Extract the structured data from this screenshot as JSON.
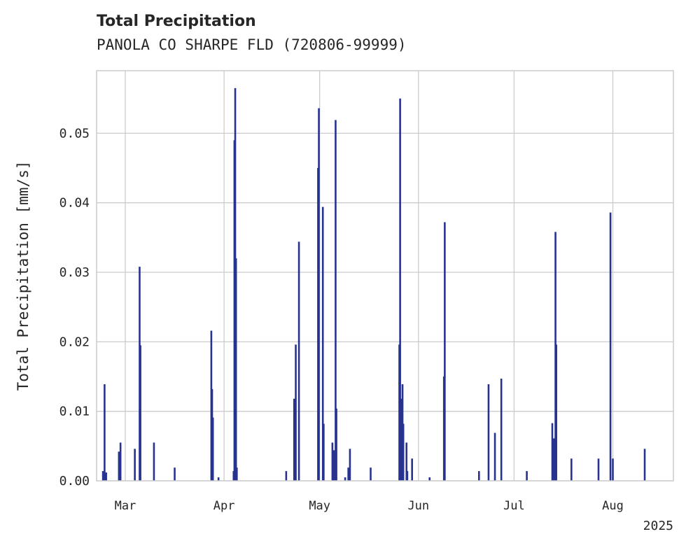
{
  "chart_data": {
    "type": "bar",
    "title": "Total Precipitation",
    "subtitle": "PANOLA CO SHARPE FLD (720806-99999)",
    "ylabel": "Total Precipitation [mm/s]",
    "xlabel": "",
    "year_label": "2025",
    "xlim": [
      "2025-02-20",
      "2025-08-20"
    ],
    "ylim": [
      0,
      0.059
    ],
    "yticks": [
      {
        "value": 0.0,
        "label": "0.00"
      },
      {
        "value": 0.01,
        "label": "0.01"
      },
      {
        "value": 0.02,
        "label": "0.02"
      },
      {
        "value": 0.03,
        "label": "0.03"
      },
      {
        "value": 0.04,
        "label": "0.04"
      },
      {
        "value": 0.05,
        "label": "0.05"
      }
    ],
    "xticks": [
      {
        "date": "2025-03-01",
        "label": "Mar"
      },
      {
        "date": "2025-04-01",
        "label": "Apr"
      },
      {
        "date": "2025-05-01",
        "label": "May"
      },
      {
        "date": "2025-06-01",
        "label": "Jun"
      },
      {
        "date": "2025-07-01",
        "label": "Jul"
      },
      {
        "date": "2025-08-01",
        "label": "Aug"
      }
    ],
    "grid": true,
    "series": [
      {
        "color": "#27338f",
        "points": [
          {
            "date": "2025-02-22",
            "value": 0.0014
          },
          {
            "date": "2025-02-22T12:00",
            "value": 0.0139
          },
          {
            "date": "2025-02-23",
            "value": 0.0012
          },
          {
            "date": "2025-02-27",
            "value": 0.0042
          },
          {
            "date": "2025-02-27T12:00",
            "value": 0.0055
          },
          {
            "date": "2025-03-04",
            "value": 0.0046
          },
          {
            "date": "2025-03-05T12:00",
            "value": 0.0308
          },
          {
            "date": "2025-03-05T18:00",
            "value": 0.0195
          },
          {
            "date": "2025-03-10",
            "value": 0.0055
          },
          {
            "date": "2025-03-16T12:00",
            "value": 0.0019
          },
          {
            "date": "2025-03-28",
            "value": 0.0216
          },
          {
            "date": "2025-03-28T06:00",
            "value": 0.0132
          },
          {
            "date": "2025-03-28T12:00",
            "value": 0.0091
          },
          {
            "date": "2025-03-30T06:00",
            "value": 0.0005
          },
          {
            "date": "2025-04-04",
            "value": 0.0014
          },
          {
            "date": "2025-04-04T06:00",
            "value": 0.049
          },
          {
            "date": "2025-04-04T12:00",
            "value": 0.0565
          },
          {
            "date": "2025-04-04T18:00",
            "value": 0.032
          },
          {
            "date": "2025-04-05",
            "value": 0.0019
          },
          {
            "date": "2025-04-20T12:00",
            "value": 0.0014
          },
          {
            "date": "2025-04-23",
            "value": 0.0118
          },
          {
            "date": "2025-04-23T12:00",
            "value": 0.0196
          },
          {
            "date": "2025-04-24T12:00",
            "value": 0.0344
          },
          {
            "date": "2025-04-30T12:00",
            "value": 0.045
          },
          {
            "date": "2025-04-30T18:00",
            "value": 0.0536
          },
          {
            "date": "2025-05-02",
            "value": 0.0394
          },
          {
            "date": "2025-05-02T06:00",
            "value": 0.0082
          },
          {
            "date": "2025-05-05",
            "value": 0.0055
          },
          {
            "date": "2025-05-05T12:00",
            "value": 0.0044
          },
          {
            "date": "2025-05-06",
            "value": 0.0519
          },
          {
            "date": "2025-05-06T06:00",
            "value": 0.0104
          },
          {
            "date": "2025-05-09",
            "value": 0.0005
          },
          {
            "date": "2025-05-10",
            "value": 0.0019
          },
          {
            "date": "2025-05-10T12:00",
            "value": 0.0046
          },
          {
            "date": "2025-05-17",
            "value": 0.0019
          },
          {
            "date": "2025-05-26",
            "value": 0.0196
          },
          {
            "date": "2025-05-26T06:00",
            "value": 0.055
          },
          {
            "date": "2025-05-26T12:00",
            "value": 0.0118
          },
          {
            "date": "2025-05-27",
            "value": 0.0139
          },
          {
            "date": "2025-05-27T06:00",
            "value": 0.0082
          },
          {
            "date": "2025-05-28T06:00",
            "value": 0.0055
          },
          {
            "date": "2025-05-28T12:00",
            "value": 0.0014
          },
          {
            "date": "2025-05-30",
            "value": 0.0032
          },
          {
            "date": "2025-06-04T12:00",
            "value": 0.0005
          },
          {
            "date": "2025-06-09",
            "value": 0.015
          },
          {
            "date": "2025-06-09T06:00",
            "value": 0.0372
          },
          {
            "date": "2025-06-20",
            "value": 0.0014
          },
          {
            "date": "2025-06-23",
            "value": 0.0139
          },
          {
            "date": "2025-06-25",
            "value": 0.0069
          },
          {
            "date": "2025-06-27",
            "value": 0.0147
          },
          {
            "date": "2025-07-05",
            "value": 0.0014
          },
          {
            "date": "2025-07-13",
            "value": 0.0083
          },
          {
            "date": "2025-07-13T12:00",
            "value": 0.0061
          },
          {
            "date": "2025-07-14",
            "value": 0.0358
          },
          {
            "date": "2025-07-14T06:00",
            "value": 0.0196
          },
          {
            "date": "2025-07-19",
            "value": 0.0032
          },
          {
            "date": "2025-07-27T12:00",
            "value": 0.0032
          },
          {
            "date": "2025-07-31T06:00",
            "value": 0.0386
          },
          {
            "date": "2025-08-01",
            "value": 0.0032
          },
          {
            "date": "2025-08-11",
            "value": 0.0046
          }
        ]
      }
    ]
  }
}
